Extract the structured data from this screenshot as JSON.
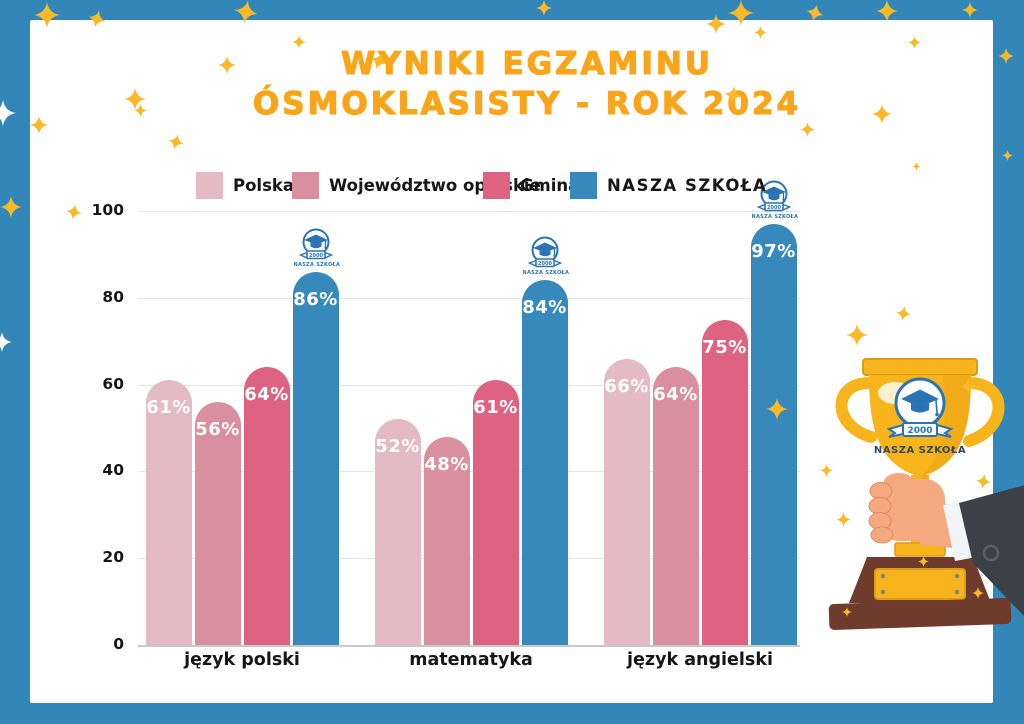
{
  "page": {
    "frame_color": "#3287B8",
    "card_color": "#FFFFFF"
  },
  "title": {
    "line1": "WYNIKI EGZAMINU",
    "line2": "ÓSMOKLASISTY - ROK 2024",
    "color": "#F9A51C"
  },
  "chart_data": {
    "type": "bar",
    "categories": [
      "język polski",
      "matematyka",
      "język angielski"
    ],
    "series": [
      {
        "name": "Polska",
        "color": "#E4BAC4",
        "values": [
          61,
          52,
          66
        ]
      },
      {
        "name": "Województwo opolskie",
        "color": "#DA8F9E",
        "values": [
          56,
          48,
          64
        ]
      },
      {
        "name": "Gmina",
        "color": "#DD6380",
        "values": [
          64,
          61,
          75
        ]
      },
      {
        "name": "NASZA SZKOŁA",
        "color": "#3789BB",
        "values": [
          86,
          84,
          97
        ]
      }
    ],
    "value_suffix": "%",
    "bar_label_color": "#FFFFFF",
    "ylim": [
      0,
      100
    ],
    "yticks": [
      0,
      20,
      40,
      60,
      80,
      100
    ],
    "grid": "horizontal",
    "legend_position": "top"
  },
  "school_badge": {
    "name": "NASZA SZKOŁA",
    "year": "2000"
  },
  "trophy": {
    "school_name": "NASZA SZKOŁA",
    "year": "2000"
  },
  "decor": {
    "star_color": "#F9B929",
    "star_color_alt": "#FFFFFF"
  }
}
